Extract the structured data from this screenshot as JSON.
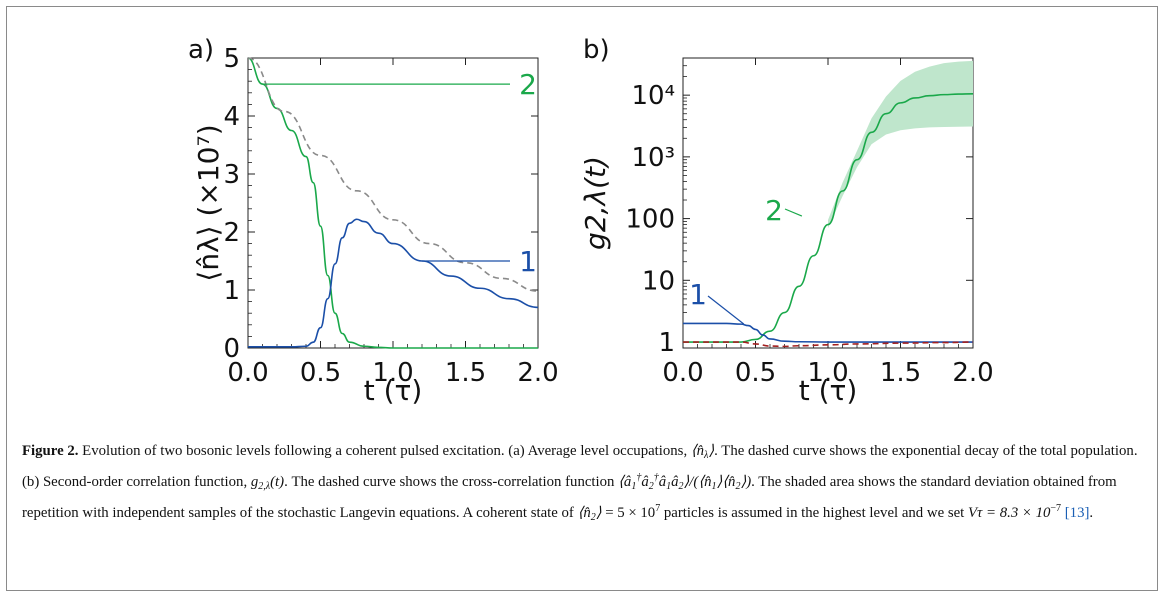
{
  "figure": {
    "caption_label": "Figure 2.",
    "caption_intro": "Evolution of two bosonic levels following a coherent pulsed excitation. (a) Average level occupations,",
    "caption_parts": {
      "a_dashed": ". The dashed curve shows the exponential decay of the total population. (b) Second-order correlation function,",
      "b_dashed": ". The dashed curve shows the cross-correlation function",
      "shaded": ". The shaded area shows the standard deviation obtained from repetition with independent samples of the stochastic Langevin equations. A coherent state of",
      "coherent_value": "= 5 × 10",
      "coherent_exp": "7",
      "particles": "particles is assumed in the highest level and we set",
      "vtau": "Vτ = 8.3 × 10",
      "vtau_exp": "−7",
      "ref": "[13]",
      "end": "."
    }
  },
  "chart_data": [
    {
      "type": "line",
      "panel_label": "a)",
      "ylabel": "⟨n̂λ⟩ (×10⁷)",
      "xlabel": "t (τ)",
      "xlim": [
        0,
        2
      ],
      "ylim": [
        0,
        5
      ],
      "xticks": [
        "0.0",
        "0.5",
        "1.0",
        "1.5",
        "2.0"
      ],
      "yticks": [
        "0",
        "1",
        "2",
        "3",
        "4",
        "5"
      ],
      "series": [
        {
          "name": "2",
          "color": "#1aa84a",
          "x": [
            0,
            0.1,
            0.2,
            0.3,
            0.4,
            0.45,
            0.5,
            0.55,
            0.6,
            0.65,
            0.7,
            0.8,
            0.9,
            1.0,
            1.5,
            2.0
          ],
          "y": [
            5.0,
            4.55,
            4.13,
            3.75,
            3.3,
            2.85,
            2.1,
            1.25,
            0.6,
            0.25,
            0.1,
            0.03,
            0.01,
            0.0,
            0.0,
            0.0
          ]
        },
        {
          "name": "1",
          "color": "#1b4fa8",
          "x": [
            0,
            0.3,
            0.4,
            0.45,
            0.5,
            0.55,
            0.6,
            0.65,
            0.7,
            0.75,
            0.8,
            0.9,
            1.0,
            1.2,
            1.4,
            1.6,
            1.8,
            2.0
          ],
          "y": [
            0.02,
            0.02,
            0.03,
            0.1,
            0.35,
            0.85,
            1.45,
            1.9,
            2.15,
            2.22,
            2.18,
            1.98,
            1.8,
            1.5,
            1.24,
            1.03,
            0.85,
            0.7
          ]
        },
        {
          "name": "",
          "style": "dashed",
          "color": "#8a8a8a",
          "x": [
            0,
            0.25,
            0.5,
            0.75,
            1.0,
            1.25,
            1.5,
            1.75,
            2.0
          ],
          "y": [
            5.0,
            4.08,
            3.32,
            2.71,
            2.21,
            1.8,
            1.47,
            1.2,
            0.98
          ]
        }
      ],
      "annotations": [
        {
          "text": "2",
          "color": "#1aa84a",
          "x": 0.1,
          "y": 4.55
        },
        {
          "text": "1",
          "color": "#1b4fa8",
          "x": 1.2,
          "y": 1.5
        }
      ]
    },
    {
      "type": "line",
      "panel_label": "b)",
      "ylabel": "g2,λ(t)",
      "xlabel": "t (τ)",
      "xlim": [
        0,
        2
      ],
      "ylim": [
        0.8,
        40000
      ],
      "yscale": "log",
      "xticks": [
        "0.0",
        "0.5",
        "1.0",
        "1.5",
        "2.0"
      ],
      "yticks": [
        "1",
        "10",
        "100",
        "10³",
        "10⁴"
      ],
      "series": [
        {
          "name": "2",
          "color": "#1aa84a",
          "x": [
            0,
            0.4,
            0.5,
            0.6,
            0.7,
            0.8,
            0.9,
            1.0,
            1.1,
            1.2,
            1.3,
            1.4,
            1.5,
            1.6,
            1.7,
            1.8,
            1.9,
            2.0
          ],
          "y": [
            1,
            1,
            1.1,
            1.5,
            3,
            8,
            25,
            80,
            280,
            900,
            2500,
            5000,
            7500,
            9000,
            9800,
            10200,
            10400,
            10500
          ]
        },
        {
          "name": "1",
          "color": "#1b4fa8",
          "x": [
            0,
            0.3,
            0.4,
            0.45,
            0.5,
            0.55,
            0.6,
            0.7,
            0.8,
            1.0,
            1.5,
            2.0
          ],
          "y": [
            2,
            2,
            1.95,
            1.85,
            1.6,
            1.3,
            1.12,
            1.03,
            1.01,
            1,
            1,
            1
          ]
        },
        {
          "name": "",
          "style": "dashed",
          "color": "#a32020",
          "x": [
            0,
            0.4,
            0.5,
            0.6,
            0.7,
            0.8,
            1.0,
            1.2,
            1.5,
            1.8,
            2.0
          ],
          "y": [
            1,
            1,
            0.93,
            0.86,
            0.85,
            0.87,
            0.9,
            0.93,
            0.96,
            0.98,
            1
          ]
        }
      ],
      "band": {
        "color": "#bfe6cc",
        "x": [
          1.0,
          1.1,
          1.2,
          1.3,
          1.4,
          1.5,
          1.6,
          1.7,
          1.8,
          1.9,
          2.0
        ],
        "lower": [
          70,
          230,
          680,
          1600,
          2300,
          2700,
          2900,
          3000,
          3050,
          3080,
          3100
        ],
        "upper": [
          95,
          380,
          1250,
          4200,
          9500,
          17000,
          24000,
          29000,
          33000,
          35000,
          36000
        ]
      },
      "annotations": [
        {
          "text": "2",
          "color": "#1aa84a",
          "x": 0.82,
          "y": 110
        },
        {
          "text": "1",
          "color": "#1b4fa8",
          "x": 0.15,
          "y": 2.6
        }
      ]
    }
  ]
}
